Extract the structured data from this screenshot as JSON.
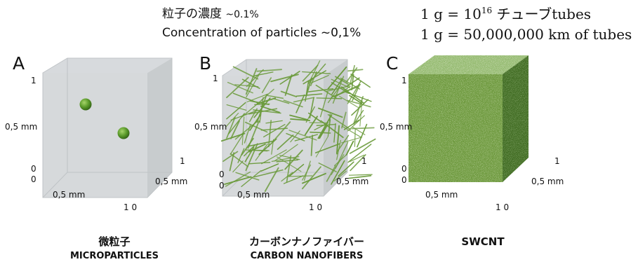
{
  "header": {
    "jp_line_main": "粒子の濃度 ",
    "jp_line_value": "~0.1%",
    "en_line": "Concentration of particles ~0,1%",
    "right_line1_prefix": "1 g = 10",
    "right_line1_exp": "16",
    "right_line1_suffix": " チューブtubes",
    "right_line2": "1 g = 50,000,000 km of tubes"
  },
  "panels": [
    {
      "letter": "A",
      "axis": {
        "top": "1",
        "left_mid": "0,5 mm",
        "origin_1": "0",
        "origin_2": "0",
        "bottom_mid": "0,5 mm",
        "bottom_end": "1 0",
        "right_top": "1",
        "right_mid": "0,5 mm"
      },
      "caption_jp": "微粒子",
      "caption_en": "MICROPARTICLES"
    },
    {
      "letter": "B",
      "axis": {
        "top": "1",
        "left_mid": "0,5 mm",
        "origin_1": "0",
        "origin_2": "0",
        "bottom_mid": "0,5 mm",
        "bottom_end": "1 0",
        "right_top": "1",
        "right_mid": "0,5 mm"
      },
      "caption_jp": "カーボンナノファイバー",
      "caption_en": "CARBON NANOFIBERS"
    },
    {
      "letter": "C",
      "axis": {
        "top": "1",
        "left_mid": "0,5 mm",
        "origin_1": "0",
        "origin_2": "0",
        "bottom_mid": "0,5 mm",
        "bottom_end": "1 0",
        "right_top": "1",
        "right_mid": "0,5 mm"
      },
      "caption_jp": "",
      "caption_en": "SWCNT"
    }
  ],
  "colors": {
    "cube_face": "#cfd2d5",
    "cube_edge": "#c4c8cb",
    "particle": "#5a9a2a",
    "fiber": "#6a9a3a",
    "swcnt_top": "#8fb56a",
    "swcnt_front": "#6f9a3e",
    "swcnt_side": "#3f6a22"
  }
}
